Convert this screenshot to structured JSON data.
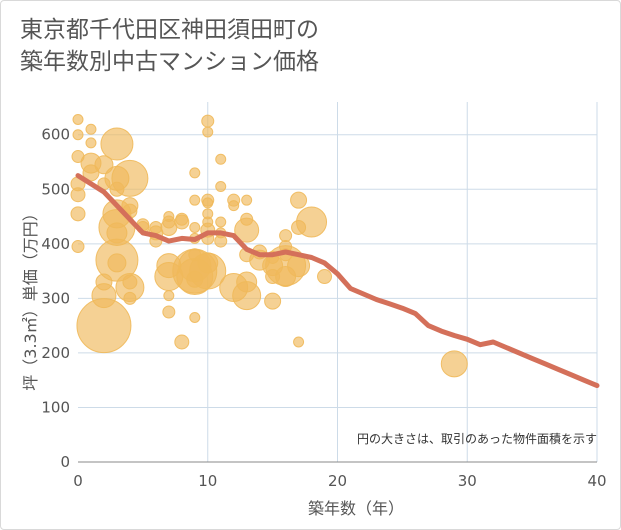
{
  "title_line1": "東京都千代田区神田須田町の",
  "title_line2": "築年数別中古マンション価格",
  "chart_data": {
    "type": "scatter",
    "xlabel": "築年数（年）",
    "ylabel": "坪（3.3㎡）単価（万円）",
    "xlim": [
      0,
      40
    ],
    "ylim": [
      0,
      660
    ],
    "xticks": [
      0,
      10,
      20,
      30,
      40
    ],
    "yticks": [
      0,
      100,
      200,
      300,
      400,
      500,
      600
    ],
    "grid": true,
    "note": "円の大きさは、取引のあった物件面積を示す",
    "colors": {
      "bubble": "#f0b95a",
      "line": "#d4705a",
      "grid": "#cddbe8"
    },
    "bubbles": [
      {
        "x": 0,
        "y": 628,
        "size": 5
      },
      {
        "x": 0,
        "y": 600,
        "size": 5
      },
      {
        "x": 0,
        "y": 560,
        "size": 6
      },
      {
        "x": 0,
        "y": 510,
        "size": 7
      },
      {
        "x": 0,
        "y": 490,
        "size": 7
      },
      {
        "x": 0,
        "y": 455,
        "size": 7
      },
      {
        "x": 0,
        "y": 395,
        "size": 6
      },
      {
        "x": 1,
        "y": 610,
        "size": 5
      },
      {
        "x": 1,
        "y": 585,
        "size": 5
      },
      {
        "x": 1,
        "y": 548,
        "size": 10
      },
      {
        "x": 1,
        "y": 530,
        "size": 8
      },
      {
        "x": 2,
        "y": 545,
        "size": 9
      },
      {
        "x": 2,
        "y": 510,
        "size": 6
      },
      {
        "x": 2,
        "y": 330,
        "size": 8
      },
      {
        "x": 2,
        "y": 305,
        "size": 12
      },
      {
        "x": 2,
        "y": 250,
        "size": 27
      },
      {
        "x": 3,
        "y": 583,
        "size": 16
      },
      {
        "x": 3,
        "y": 520,
        "size": 12
      },
      {
        "x": 3,
        "y": 500,
        "size": 7
      },
      {
        "x": 3,
        "y": 455,
        "size": 14
      },
      {
        "x": 3,
        "y": 430,
        "size": 18
      },
      {
        "x": 3,
        "y": 420,
        "size": 10
      },
      {
        "x": 3,
        "y": 370,
        "size": 21
      },
      {
        "x": 3,
        "y": 365,
        "size": 9
      },
      {
        "x": 4,
        "y": 520,
        "size": 18
      },
      {
        "x": 4,
        "y": 470,
        "size": 8
      },
      {
        "x": 4,
        "y": 460,
        "size": 7
      },
      {
        "x": 4,
        "y": 330,
        "size": 7
      },
      {
        "x": 4,
        "y": 320,
        "size": 14
      },
      {
        "x": 4,
        "y": 300,
        "size": 6
      },
      {
        "x": 5,
        "y": 435,
        "size": 6
      },
      {
        "x": 5,
        "y": 430,
        "size": 6
      },
      {
        "x": 6,
        "y": 430,
        "size": 6
      },
      {
        "x": 6,
        "y": 420,
        "size": 7
      },
      {
        "x": 6,
        "y": 405,
        "size": 6
      },
      {
        "x": 7,
        "y": 450,
        "size": 5
      },
      {
        "x": 7,
        "y": 440,
        "size": 6
      },
      {
        "x": 7,
        "y": 430,
        "size": 8
      },
      {
        "x": 7,
        "y": 360,
        "size": 12
      },
      {
        "x": 7,
        "y": 340,
        "size": 14
      },
      {
        "x": 7,
        "y": 305,
        "size": 5
      },
      {
        "x": 7,
        "y": 275,
        "size": 6
      },
      {
        "x": 8,
        "y": 445,
        "size": 6
      },
      {
        "x": 8,
        "y": 440,
        "size": 7
      },
      {
        "x": 8,
        "y": 220,
        "size": 7
      },
      {
        "x": 9,
        "y": 530,
        "size": 5
      },
      {
        "x": 9,
        "y": 480,
        "size": 5
      },
      {
        "x": 9,
        "y": 430,
        "size": 5
      },
      {
        "x": 9,
        "y": 410,
        "size": 5
      },
      {
        "x": 9,
        "y": 380,
        "size": 6
      },
      {
        "x": 9,
        "y": 360,
        "size": 16
      },
      {
        "x": 9,
        "y": 350,
        "size": 22
      },
      {
        "x": 9,
        "y": 340,
        "size": 18
      },
      {
        "x": 9,
        "y": 335,
        "size": 8
      },
      {
        "x": 9,
        "y": 265,
        "size": 5
      },
      {
        "x": 10,
        "y": 625,
        "size": 6
      },
      {
        "x": 10,
        "y": 605,
        "size": 5
      },
      {
        "x": 10,
        "y": 480,
        "size": 6
      },
      {
        "x": 10,
        "y": 475,
        "size": 5
      },
      {
        "x": 10,
        "y": 455,
        "size": 5
      },
      {
        "x": 10,
        "y": 440,
        "size": 5
      },
      {
        "x": 10,
        "y": 425,
        "size": 7
      },
      {
        "x": 10,
        "y": 410,
        "size": 6
      },
      {
        "x": 10,
        "y": 365,
        "size": 10
      },
      {
        "x": 10,
        "y": 350,
        "size": 18
      },
      {
        "x": 11,
        "y": 555,
        "size": 5
      },
      {
        "x": 11,
        "y": 505,
        "size": 5
      },
      {
        "x": 11,
        "y": 440,
        "size": 5
      },
      {
        "x": 11,
        "y": 420,
        "size": 5
      },
      {
        "x": 11,
        "y": 405,
        "size": 6
      },
      {
        "x": 12,
        "y": 480,
        "size": 6
      },
      {
        "x": 12,
        "y": 470,
        "size": 5
      },
      {
        "x": 12,
        "y": 320,
        "size": 14
      },
      {
        "x": 13,
        "y": 480,
        "size": 5
      },
      {
        "x": 13,
        "y": 445,
        "size": 6
      },
      {
        "x": 13,
        "y": 425,
        "size": 12
      },
      {
        "x": 13,
        "y": 380,
        "size": 7
      },
      {
        "x": 13,
        "y": 330,
        "size": 10
      },
      {
        "x": 13,
        "y": 305,
        "size": 14
      },
      {
        "x": 14,
        "y": 385,
        "size": 7
      },
      {
        "x": 14,
        "y": 370,
        "size": 10
      },
      {
        "x": 15,
        "y": 375,
        "size": 6
      },
      {
        "x": 15,
        "y": 360,
        "size": 10
      },
      {
        "x": 15,
        "y": 340,
        "size": 7
      },
      {
        "x": 15,
        "y": 295,
        "size": 8
      },
      {
        "x": 16,
        "y": 415,
        "size": 6
      },
      {
        "x": 16,
        "y": 395,
        "size": 6
      },
      {
        "x": 16,
        "y": 380,
        "size": 6
      },
      {
        "x": 16,
        "y": 360,
        "size": 20
      },
      {
        "x": 16,
        "y": 340,
        "size": 10
      },
      {
        "x": 17,
        "y": 480,
        "size": 8
      },
      {
        "x": 17,
        "y": 430,
        "size": 7
      },
      {
        "x": 17,
        "y": 360,
        "size": 11
      },
      {
        "x": 17,
        "y": 220,
        "size": 5
      },
      {
        "x": 18,
        "y": 440,
        "size": 15
      },
      {
        "x": 19,
        "y": 340,
        "size": 7
      },
      {
        "x": 29,
        "y": 180,
        "size": 13
      }
    ],
    "trend": {
      "x": [
        0,
        2,
        4,
        5,
        6,
        7,
        8,
        9,
        10,
        11,
        12,
        13,
        14,
        15,
        16,
        17,
        18,
        19,
        20,
        21,
        22,
        23,
        24,
        25,
        26,
        27,
        28,
        29,
        30,
        31,
        32,
        33,
        34,
        35,
        36,
        37,
        38,
        39,
        40
      ],
      "y": [
        525,
        495,
        445,
        420,
        415,
        405,
        410,
        408,
        420,
        420,
        415,
        390,
        380,
        380,
        385,
        380,
        375,
        365,
        345,
        318,
        308,
        298,
        290,
        282,
        272,
        250,
        240,
        232,
        225,
        215,
        220,
        210,
        200,
        190,
        180,
        170,
        160,
        150,
        140
      ]
    }
  }
}
